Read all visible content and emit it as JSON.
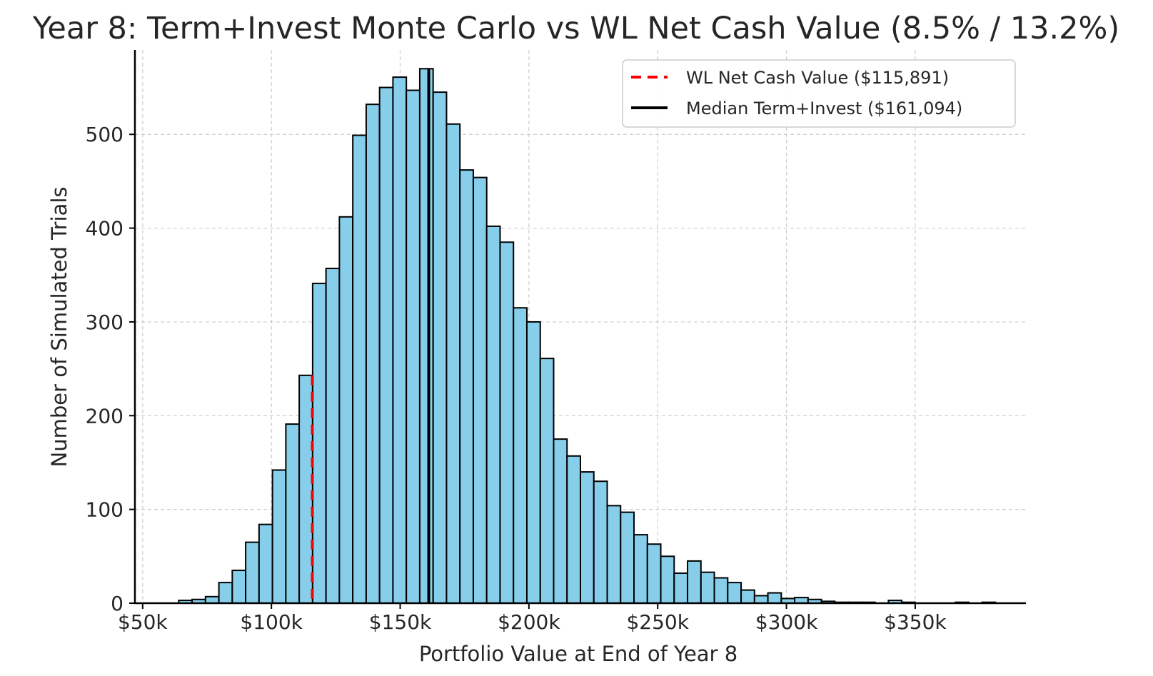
{
  "chart_data": {
    "type": "bar",
    "subtype": "histogram",
    "title": "Year 8: Term+Invest Monte Carlo vs WL Net Cash Value (8.5% / 13.2%)",
    "xlabel": "Portfolio Value at End of Year 8",
    "ylabel": "Number of Simulated Trials",
    "xlim": [
      47000,
      393000
    ],
    "ylim": [
      0,
      590
    ],
    "x_ticks": [
      50000,
      100000,
      150000,
      200000,
      250000,
      300000,
      350000
    ],
    "x_tick_labels": [
      "$50k",
      "$100k",
      "$150k",
      "$200k",
      "$250k",
      "$300k",
      "$350k"
    ],
    "y_ticks": [
      0,
      100,
      200,
      300,
      400,
      500
    ],
    "y_tick_labels": [
      "0",
      "100",
      "200",
      "300",
      "400",
      "500"
    ],
    "grid": true,
    "legend_position": "top-right",
    "bar_color": "#87ceeb",
    "bar_edge_color": "#000000",
    "bin_width": 5200,
    "bin_starts": [
      64000,
      69200,
      74400,
      79600,
      84800,
      90000,
      95200,
      100400,
      105600,
      110800,
      116000,
      121200,
      126400,
      131600,
      136800,
      142000,
      147200,
      152400,
      157600,
      162800,
      168000,
      173200,
      178400,
      183600,
      188800,
      194000,
      199200,
      204400,
      209600,
      214800,
      220000,
      225200,
      230400,
      235600,
      240800,
      246000,
      251200,
      256400,
      261600,
      266800,
      272000,
      277200,
      282400,
      287600,
      292800,
      298000,
      303200,
      308400,
      313600,
      318800,
      324000,
      329200,
      334400,
      339600,
      344800,
      350000,
      355200,
      360400,
      365600,
      370800,
      376000
    ],
    "counts": [
      3,
      4,
      7,
      22,
      35,
      65,
      84,
      142,
      191,
      243,
      341,
      357,
      412,
      499,
      532,
      550,
      561,
      547,
      570,
      545,
      511,
      462,
      454,
      402,
      385,
      315,
      300,
      261,
      175,
      157,
      140,
      130,
      104,
      97,
      73,
      63,
      50,
      32,
      45,
      33,
      27,
      22,
      14,
      8,
      11,
      5,
      6,
      4,
      2,
      1,
      1,
      1,
      0,
      3,
      1,
      0,
      0,
      0,
      1,
      0,
      1
    ],
    "reference_lines": [
      {
        "name": "WL Net Cash Value ($115,891)",
        "value": 115891,
        "style": "dashed",
        "color": "#ff0000"
      },
      {
        "name": "Median Term+Invest ($161,094)",
        "value": 161094,
        "style": "solid",
        "color": "#000000"
      }
    ]
  }
}
